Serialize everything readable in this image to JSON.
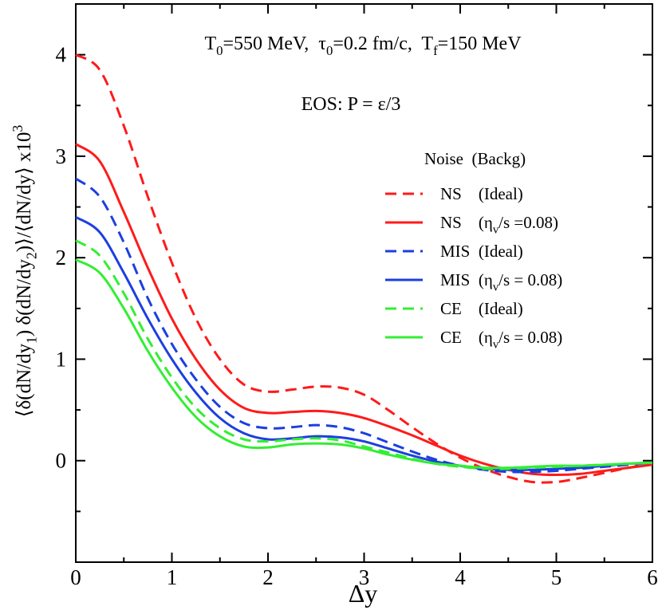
{
  "chart_data": {
    "type": "line",
    "annotations": [
      [
        "T",
        {
          "text": "0",
          "script": "sub"
        },
        "=550 MeV,  τ",
        {
          "text": "0",
          "script": "sub"
        },
        "=0.2 fm/c,  T",
        {
          "text": "f",
          "script": "sub"
        },
        "=150 MeV"
      ],
      [
        "EOS: P = ε/3"
      ]
    ],
    "xlabel": [
      "Δy"
    ],
    "ylabel": [
      "⟨δ(dN/dy",
      {
        "text": "1",
        "script": "sub"
      },
      ") δ(dN/dy",
      {
        "text": "2",
        "script": "sub"
      },
      ")⟩/⟨dN/dy⟩ x10",
      {
        "text": "3",
        "script": "sup"
      }
    ],
    "legend_title": "Noise  (Backg)",
    "x": [
      0,
      0.25,
      0.5,
      0.75,
      1,
      1.25,
      1.5,
      1.75,
      2,
      2.25,
      2.5,
      2.75,
      3,
      3.25,
      3.5,
      3.75,
      4,
      4.25,
      4.5,
      4.75,
      5,
      5.25,
      5.5,
      5.75,
      6
    ],
    "series": [
      {
        "name": [
          "NS    (Ideal)"
        ],
        "color": "#ff1a1a",
        "dash": true,
        "values": [
          4.0,
          3.85,
          3.3,
          2.6,
          1.95,
          1.4,
          1.0,
          0.75,
          0.68,
          0.7,
          0.73,
          0.72,
          0.65,
          0.5,
          0.33,
          0.17,
          0.03,
          -0.08,
          -0.16,
          -0.21,
          -0.21,
          -0.17,
          -0.12,
          -0.07,
          -0.03
        ]
      },
      {
        "name": [
          "NS    (η",
          {
            "text": "v",
            "script": "sub"
          },
          "/s =0.08)"
        ],
        "color": "#ff1a1a",
        "dash": false,
        "values": [
          3.12,
          2.95,
          2.45,
          1.9,
          1.4,
          1.0,
          0.7,
          0.52,
          0.47,
          0.48,
          0.49,
          0.47,
          0.42,
          0.34,
          0.25,
          0.15,
          0.05,
          -0.03,
          -0.09,
          -0.13,
          -0.14,
          -0.13,
          -0.1,
          -0.07,
          -0.04
        ]
      },
      {
        "name": [
          "MIS  (Ideal)"
        ],
        "color": "#1c3fe0",
        "dash": true,
        "values": [
          2.78,
          2.6,
          2.15,
          1.6,
          1.15,
          0.8,
          0.53,
          0.37,
          0.32,
          0.33,
          0.35,
          0.33,
          0.27,
          0.18,
          0.09,
          0.01,
          -0.05,
          -0.09,
          -0.11,
          -0.11,
          -0.1,
          -0.08,
          -0.06,
          -0.04,
          -0.02
        ]
      },
      {
        "name": [
          "MIS  (η",
          {
            "text": "v",
            "script": "sub"
          },
          "/s = 0.08)"
        ],
        "color": "#1c3fe0",
        "dash": false,
        "values": [
          2.4,
          2.25,
          1.85,
          1.4,
          1.0,
          0.67,
          0.42,
          0.27,
          0.21,
          0.22,
          0.24,
          0.23,
          0.19,
          0.12,
          0.05,
          -0.01,
          -0.05,
          -0.08,
          -0.09,
          -0.09,
          -0.08,
          -0.07,
          -0.05,
          -0.03,
          -0.02
        ]
      },
      {
        "name": [
          "CE    (Ideal)"
        ],
        "color": "#33ee33",
        "dash": true,
        "values": [
          2.17,
          2.02,
          1.65,
          1.2,
          0.82,
          0.52,
          0.32,
          0.21,
          0.19,
          0.21,
          0.22,
          0.2,
          0.14,
          0.08,
          0.02,
          -0.03,
          -0.06,
          -0.08,
          -0.08,
          -0.07,
          -0.06,
          -0.05,
          -0.04,
          -0.03,
          -0.02
        ]
      },
      {
        "name": [
          "CE    (η",
          {
            "text": "v",
            "script": "sub"
          },
          "/s = 0.08)"
        ],
        "color": "#33ee33",
        "dash": false,
        "values": [
          1.98,
          1.85,
          1.5,
          1.08,
          0.72,
          0.43,
          0.24,
          0.14,
          0.13,
          0.16,
          0.17,
          0.16,
          0.12,
          0.06,
          0.01,
          -0.03,
          -0.05,
          -0.07,
          -0.07,
          -0.06,
          -0.05,
          -0.05,
          -0.04,
          -0.03,
          -0.02
        ]
      }
    ],
    "xlim": [
      0,
      6
    ],
    "xticks": [
      0,
      1,
      2,
      3,
      4,
      5,
      6
    ],
    "xminorticks": [
      0.5,
      1.5,
      2.5,
      3.5,
      4.5,
      5.5
    ],
    "ylim": [
      -1,
      4.5
    ],
    "yticks": [
      0,
      1,
      2,
      3,
      4
    ],
    "yminorticks": [
      -0.5,
      0.5,
      1.5,
      2.5,
      3.5
    ]
  }
}
